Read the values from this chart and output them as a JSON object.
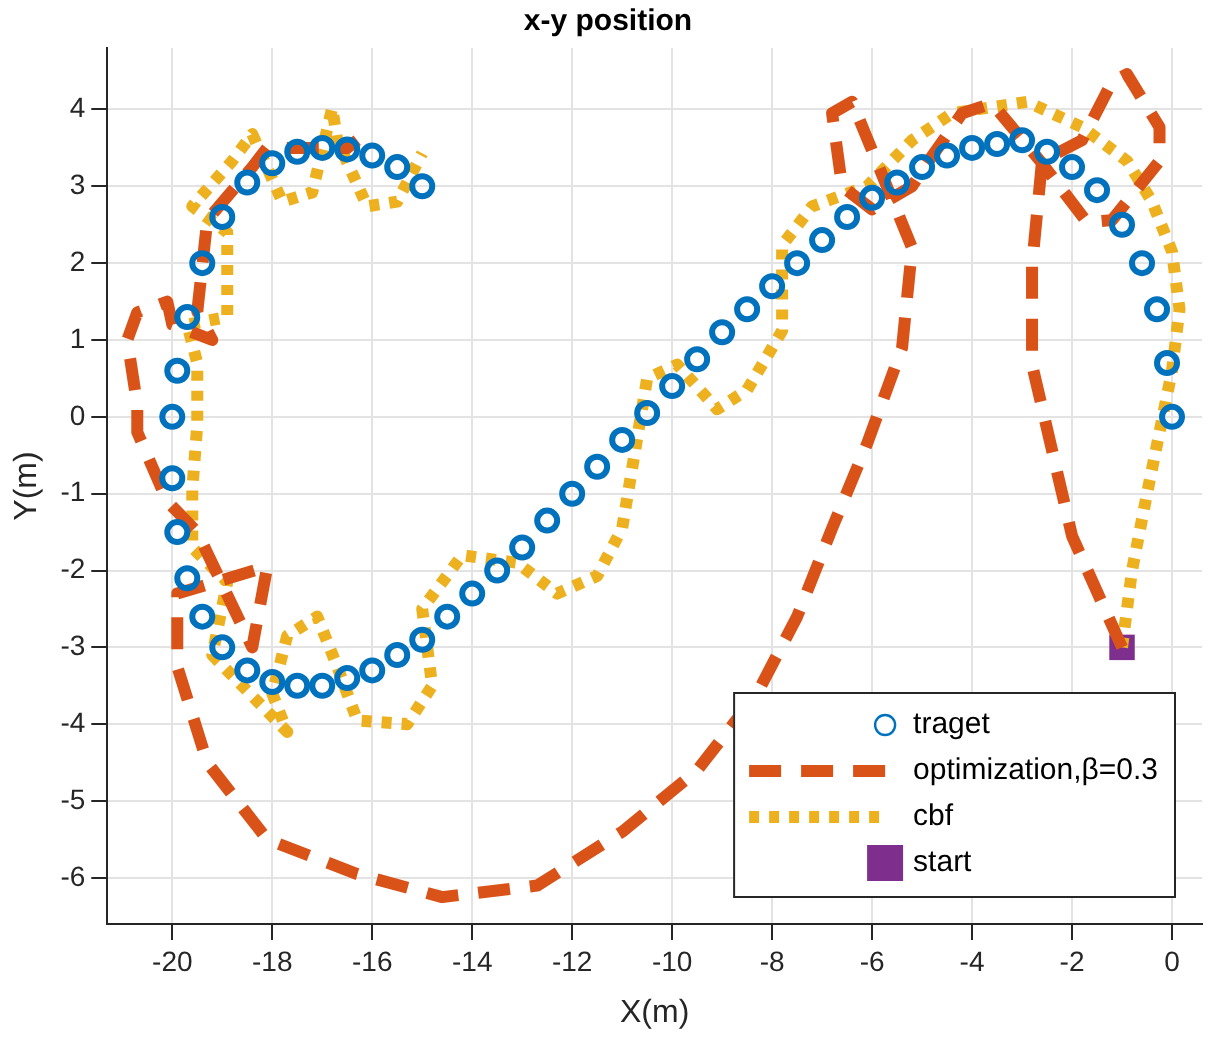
{
  "chart_data": {
    "type": "scatter",
    "title": "x-y position",
    "xlabel": "X(m)",
    "ylabel": "Y(m)",
    "xlim": [
      -21.3,
      0.6
    ],
    "ylim": [
      -6.6,
      4.8
    ],
    "xticks": [
      -20,
      -18,
      -16,
      -14,
      -12,
      -10,
      -8,
      -6,
      -4,
      -2,
      0
    ],
    "yticks": [
      -6,
      -5,
      -4,
      -3,
      -2,
      -1,
      0,
      1,
      2,
      3,
      4
    ],
    "grid": true,
    "legend": "bottom right",
    "series": [
      {
        "name": "traget",
        "marker": "circle",
        "color": "#0072bd",
        "x": [
          -15,
          -15.5,
          -16,
          -16.5,
          -17,
          -17.5,
          -18,
          -18.5,
          -19,
          -19.4,
          -19.7,
          -19.9,
          -20,
          -20,
          -19.9,
          -19.7,
          -19.4,
          -19,
          -18.5,
          -18,
          -17.5,
          -17,
          -16.5,
          -16,
          -15.5,
          -15,
          -14.5,
          -14,
          -13.5,
          -13,
          -12.5,
          -12,
          -11.5,
          -11,
          -10.5,
          -10,
          -9.5,
          -9,
          -8.5,
          -8,
          -7.5,
          -7,
          -6.5,
          -6,
          -5.5,
          -5,
          -4.5,
          -4,
          -3.5,
          -3,
          -2.5,
          -2,
          -1.5,
          -1,
          -0.6,
          -0.3,
          -0.1,
          0
        ],
        "values": [
          3,
          3.25,
          3.4,
          3.48,
          3.5,
          3.45,
          3.3,
          3.05,
          2.6,
          2,
          1.3,
          0.6,
          0,
          -0.8,
          -1.5,
          -2.1,
          -2.6,
          -3,
          -3.3,
          -3.45,
          -3.5,
          -3.5,
          -3.4,
          -3.3,
          -3.1,
          -2.9,
          -2.6,
          -2.3,
          -2,
          -1.7,
          -1.35,
          -1,
          -0.65,
          -0.3,
          0.05,
          0.4,
          0.75,
          1.1,
          1.4,
          1.7,
          2,
          2.3,
          2.6,
          2.85,
          3.05,
          3.25,
          3.4,
          3.5,
          3.55,
          3.6,
          3.45,
          3.25,
          2.95,
          2.5,
          2,
          1.4,
          0.7,
          0
        ]
      },
      {
        "name": "optimization,β=0.3",
        "type": "line",
        "line_style": "dashed",
        "color": "#d95319",
        "x": [
          -1,
          -2,
          -2.8,
          -2.8,
          -2.6,
          -1.8,
          -1.2,
          -0.9,
          -0.25,
          -0.25,
          -1.2,
          -1.7,
          -2.6,
          -3.6,
          -4.2,
          -4.9,
          -5.2,
          -6,
          -6.6,
          -6.8,
          -6.4,
          -5.2,
          -5.4,
          -6.1,
          -6.8,
          -7.5,
          -8.3,
          -9.5,
          -11,
          -12.7,
          -14.6,
          -16.3,
          -18.1,
          -19.3,
          -19.9,
          -19.9,
          -18.1,
          -18.4,
          -19.5,
          -20.1,
          -20.7,
          -20.7,
          -20.9,
          -20.7,
          -20.1,
          -20,
          -19.2,
          -19.5,
          -19.3,
          -18.4,
          -18.1,
          -16.5,
          -16.3
        ],
        "values": [
          -3,
          -1.55,
          0.68,
          1.97,
          3.33,
          3.6,
          4.36,
          4.46,
          3.77,
          3.33,
          2.56,
          2.53,
          3.3,
          4.08,
          3.95,
          3.3,
          3,
          2.7,
          3,
          3.95,
          4.1,
          2.2,
          0.9,
          -0.35,
          -1.45,
          -2.6,
          -3.6,
          -4.6,
          -5.4,
          -6.1,
          -6.25,
          -5.95,
          -5.5,
          -4.5,
          -3.25,
          -2.3,
          -1.95,
          -3,
          -1.5,
          -1.1,
          -0.2,
          0.15,
          1,
          1.36,
          1.5,
          1.2,
          1,
          1.37,
          2.56,
          3.25,
          3.5,
          3.5,
          3.6
        ]
      },
      {
        "name": "cbf",
        "type": "line",
        "line_style": "dotted",
        "color": "#edb120",
        "x": [
          -1,
          -0.8,
          -0.5,
          0,
          0.15,
          0,
          -0.4,
          -0.9,
          -1.8,
          -2.9,
          -4.4,
          -5.2,
          -6.1,
          -7.2,
          -7.8,
          -7.8,
          -8.5,
          -9.1,
          -9.9,
          -10.5,
          -11,
          -11.5,
          -12.3,
          -13.1,
          -14.2,
          -15,
          -14.8,
          -15.3,
          -16.3,
          -16.7,
          -17.1,
          -17.7,
          -18,
          -17.7,
          -19.2,
          -18.9,
          -19.6,
          -19.6,
          -19.5,
          -19.5,
          -19.7,
          -18.9,
          -18.9,
          -18.9,
          -19.6,
          -18.8,
          -18.4,
          -17.8,
          -17.2,
          -16.8,
          -16.7,
          -16.1,
          -15.5,
          -15
        ],
        "values": [
          -3,
          -2,
          -1,
          0.6,
          1.4,
          2.15,
          2.8,
          3.33,
          3.77,
          4.1,
          3.95,
          3.6,
          3,
          2.74,
          2.23,
          1.12,
          0.35,
          0.1,
          0.68,
          0.5,
          -1.45,
          -2.07,
          -2.3,
          -1.9,
          -1.8,
          -2.5,
          -3.5,
          -4,
          -3.95,
          -3.25,
          -2.6,
          -2.85,
          -3.6,
          -4.1,
          -3.1,
          -2.15,
          -1.7,
          -0.95,
          -0.1,
          0.7,
          1.2,
          1.3,
          1.97,
          2.4,
          2.74,
          3.33,
          3.68,
          2.8,
          2.92,
          4.02,
          3.6,
          2.74,
          2.8,
          3.43
        ]
      },
      {
        "name": "start",
        "marker": "square",
        "color": "#7e2f8e",
        "x": [
          -1
        ],
        "values": [
          -3
        ]
      }
    ]
  }
}
